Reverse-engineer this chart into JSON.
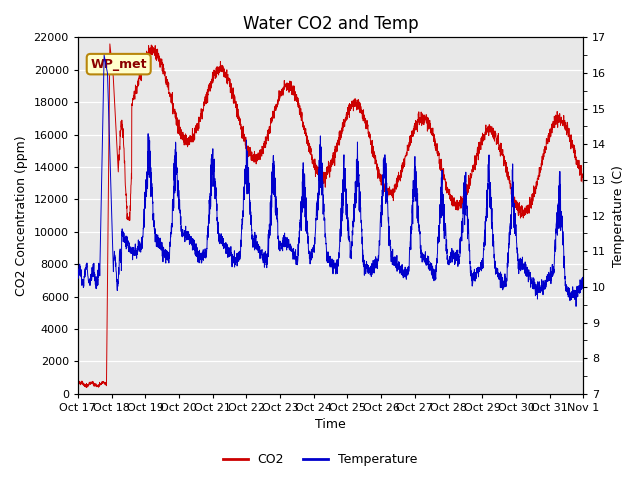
{
  "title": "Water CO2 and Temp",
  "xlabel": "Time",
  "ylabel_left": "CO2 Concentration (ppm)",
  "ylabel_right": "Temperature (C)",
  "ylim_left": [
    0,
    22000
  ],
  "ylim_right": [
    7.0,
    17.0
  ],
  "yticks_left": [
    0,
    2000,
    4000,
    6000,
    8000,
    10000,
    12000,
    14000,
    16000,
    18000,
    20000,
    22000
  ],
  "yticks_right": [
    7.0,
    8.0,
    9.0,
    10.0,
    11.0,
    12.0,
    13.0,
    14.0,
    15.0,
    16.0,
    17.0
  ],
  "xtick_labels": [
    "Oct 17",
    "Oct 18",
    "Oct 19",
    "Oct 20",
    "Oct 21",
    "Oct 22",
    "Oct 23",
    "Oct 24",
    "Oct 25",
    "Oct 26",
    "Oct 27",
    "Oct 28",
    "Oct 29",
    "Oct 30",
    "Oct 31",
    "Nov 1"
  ],
  "annotation_text": "WP_met",
  "annotation_color": "#8B0000",
  "annotation_bg": "#FFFFCC",
  "annotation_border": "#B8860B",
  "co2_color": "#CC0000",
  "temp_color": "#0000CC",
  "fig_bg": "#FFFFFF",
  "plot_bg": "#E8E8E8",
  "title_fontsize": 12,
  "label_fontsize": 9,
  "tick_fontsize": 8,
  "legend_fontsize": 9,
  "grid_color": "#FFFFFF"
}
